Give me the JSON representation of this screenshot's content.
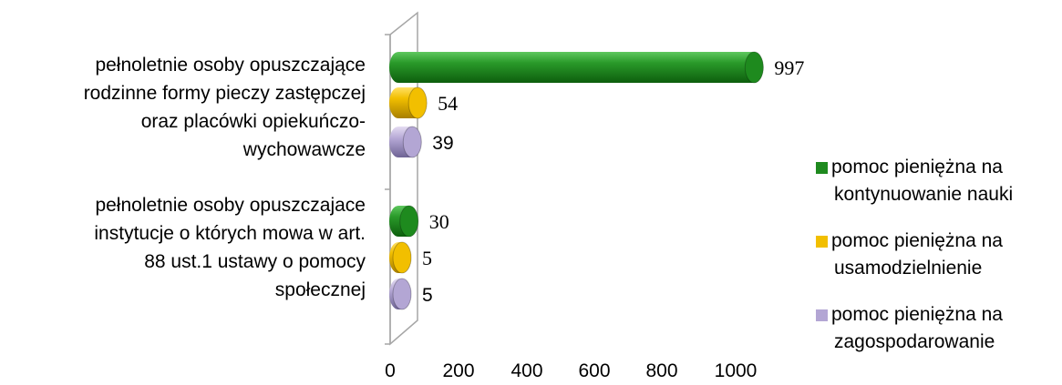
{
  "chart_data": {
    "type": "bar",
    "orientation": "horizontal",
    "style": "3d-cylinder",
    "categories": [
      [
        "pełnoletnie osoby opuszczające",
        "rodzinne formy pieczy zastępczej",
        "oraz placówki opiekuńczo-",
        "wychowawcze"
      ],
      [
        "pełnoletnie osoby opuszczajace",
        "instytucje o których mowa w art.",
        "88 ust.1 ustawy o pomocy",
        "społecznej"
      ]
    ],
    "series": [
      {
        "name": [
          "pomoc pieniężna na",
          "kontynuowanie nauki"
        ],
        "values": [
          997,
          30
        ],
        "labels": [
          "997",
          "30"
        ],
        "color": "#1e8a1e",
        "label_font": [
          "serif",
          "serif"
        ]
      },
      {
        "name": [
          "pomoc pieniężna na",
          "usamodzielnienie"
        ],
        "values": [
          54,
          5
        ],
        "labels": [
          "54",
          "5"
        ],
        "color": "#f2bf00",
        "label_font": [
          "serif",
          "serif"
        ]
      },
      {
        "name": [
          "pomoc pieniężna na",
          "zagospodarowanie"
        ],
        "values": [
          39,
          5
        ],
        "labels": [
          "39",
          "5"
        ],
        "color": "#b3a6d4",
        "label_font": [
          "sans",
          "sans"
        ]
      }
    ],
    "x_ticks": [
      0,
      200,
      400,
      600,
      800,
      1000
    ],
    "xlim": [
      0,
      1000
    ],
    "legend": "right",
    "grid": false
  }
}
